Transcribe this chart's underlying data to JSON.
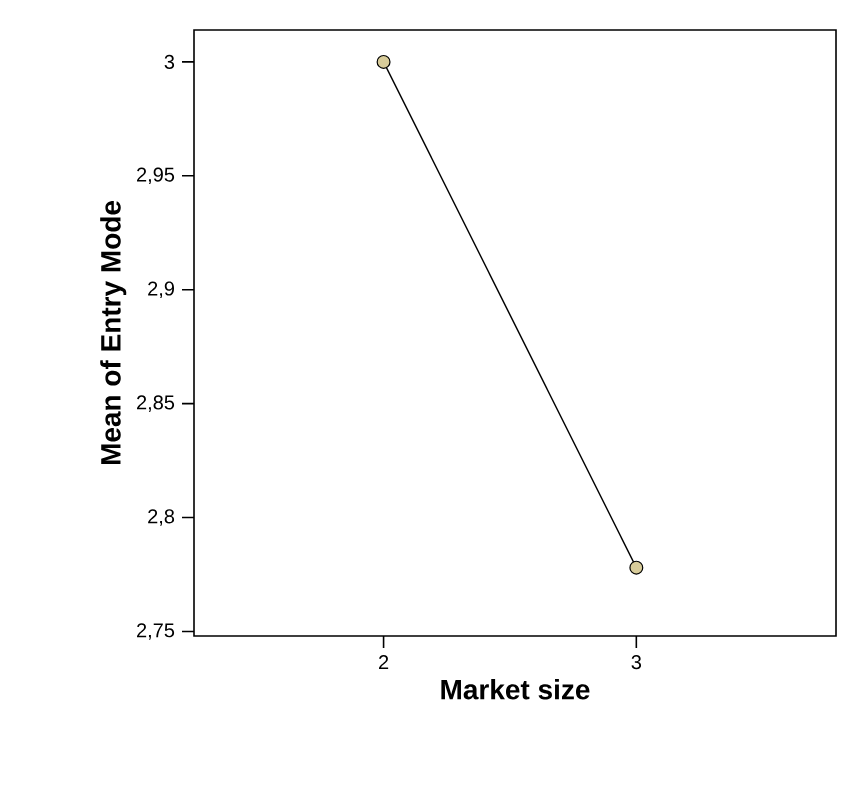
{
  "chart_data": {
    "type": "line",
    "xlabel": "Market size",
    "ylabel": "Mean of Entry Mode",
    "categories": [
      "2",
      "3"
    ],
    "series": [
      {
        "color": "#000000",
        "values": [
          3.0,
          2.778
        ]
      }
    ],
    "ylim": [
      2.748,
      3.014
    ],
    "yticks": [
      {
        "value": 2.75,
        "label": "2,75"
      },
      {
        "value": 2.8,
        "label": "2,8"
      },
      {
        "value": 2.85,
        "label": "2,85"
      },
      {
        "value": 2.9,
        "label": "2,9"
      },
      {
        "value": 2.95,
        "label": "2,95"
      },
      3
    ],
    "marker": "circle",
    "line_style": "solid"
  }
}
